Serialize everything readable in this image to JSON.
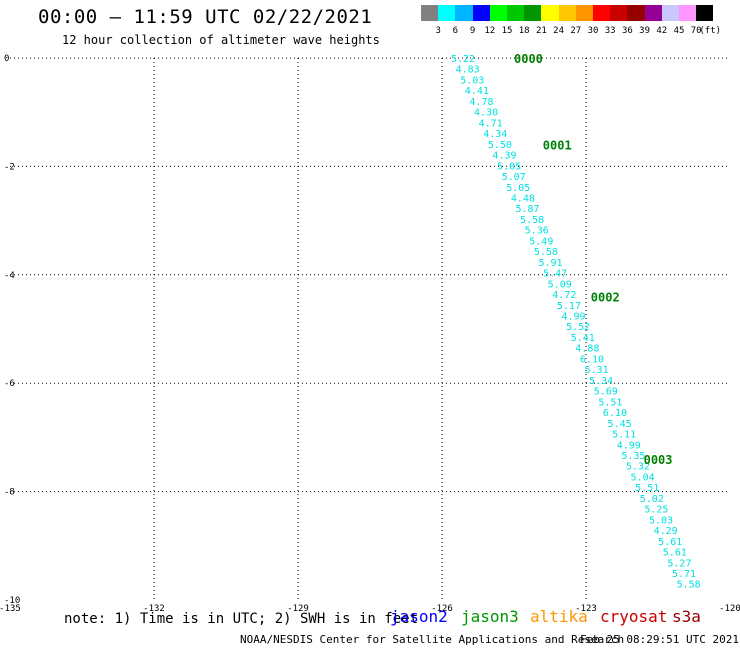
{
  "title": "00:00 – 11:59 UTC 02/22/2021",
  "subtitle": "12 hour collection of altimeter wave heights",
  "colorbar": {
    "labels": [
      "3",
      "6",
      "9",
      "12",
      "15",
      "18",
      "21",
      "24",
      "27",
      "30",
      "33",
      "36",
      "39",
      "42",
      "45",
      "70"
    ],
    "unit": "(ft)",
    "colors": [
      "#808080",
      "#00ffff",
      "#00b4ff",
      "#0000ff",
      "#00ff00",
      "#00c800",
      "#009600",
      "#ffff00",
      "#ffc800",
      "#ff9600",
      "#ff0000",
      "#c80000",
      "#960000",
      "#960096",
      "#c8c8ff",
      "#ff96ff",
      "#000000"
    ]
  },
  "note": "note: 1) Time is in UTC; 2) SWH is in feet",
  "satellites": [
    {
      "name": "jason2",
      "color": "#0000ff"
    },
    {
      "name": "jason3",
      "color": "#009600"
    },
    {
      "name": "altika",
      "color": "#ff9600"
    },
    {
      "name": "cryosat",
      "color": "#c80000"
    },
    {
      "name": "s3a",
      "color": "#960000"
    }
  ],
  "credit": "NOAA/NESDIS Center for Satellite Applications and Research",
  "timestamp": "Feb 25 08:29:51 UTC 2021",
  "chart_data": {
    "type": "scatter",
    "xlim": [
      -135,
      -120
    ],
    "ylim": [
      -10,
      0
    ],
    "x_ticks": [
      "-135",
      "-132",
      "-129",
      "-126",
      "-123",
      "-120"
    ],
    "y_ticks": [
      "0",
      "-2",
      "-4",
      "-6",
      "-8",
      "-10"
    ],
    "grid": true,
    "track": {
      "color": "#00e0e0",
      "start": [
        -125.5,
        0.0
      ],
      "end": [
        -120.8,
        -9.7
      ],
      "values": [
        "5.22",
        "4.83",
        "5.03",
        "4.41",
        "4.78",
        "4.30",
        "4.71",
        "4.34",
        "5.50",
        "4.39",
        "5.05",
        "5.07",
        "5.05",
        "4.48",
        "5.87",
        "5.58",
        "5.36",
        "5.49",
        "5.58",
        "5.91",
        "5.47",
        "5.09",
        "4.72",
        "5.17",
        "4.99",
        "5.52",
        "5.41",
        "4.88",
        "6.10",
        "5.31",
        "5.34",
        "5.69",
        "5.51",
        "6.10",
        "5.45",
        "5.11",
        "4.99",
        "5.35",
        "5.32",
        "5.04",
        "5.51",
        "5.02",
        "5.25",
        "5.03",
        "4.29",
        "5.61",
        "5.61",
        "5.27",
        "5.71",
        "5.58"
      ]
    },
    "time_labels": [
      {
        "text": "0000",
        "lon": -124.5,
        "lat": 0.0
      },
      {
        "text": "0001",
        "lon": -123.9,
        "lat": -1.6
      },
      {
        "text": "0002",
        "lon": -122.9,
        "lat": -4.4
      },
      {
        "text": "0003",
        "lon": -121.8,
        "lat": -7.4
      }
    ],
    "time_label_color": "#008000"
  }
}
